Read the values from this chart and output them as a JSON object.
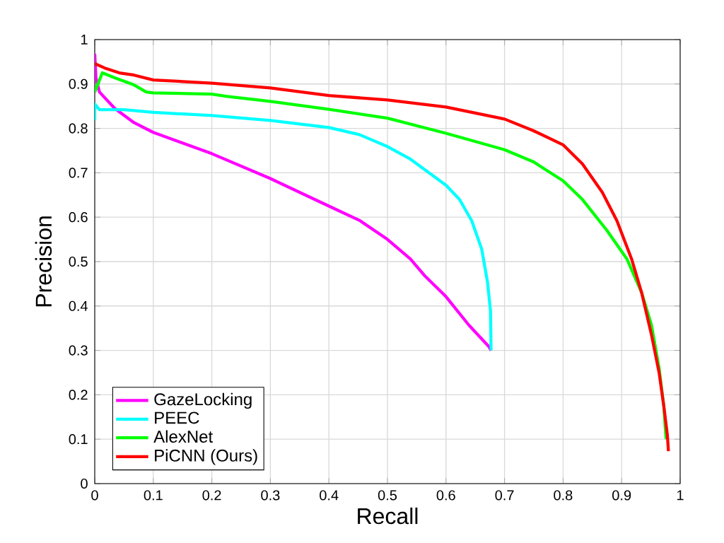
{
  "chart_data": {
    "type": "line",
    "xlabel": "Recall",
    "ylabel": "Precision",
    "xlim": [
      0,
      1
    ],
    "ylim": [
      0,
      1
    ],
    "xticks": [
      0,
      0.1,
      0.2,
      0.3,
      0.4,
      0.5,
      0.6,
      0.7,
      0.8,
      0.9,
      1
    ],
    "yticks": [
      0,
      0.1,
      0.2,
      0.3,
      0.4,
      0.5,
      0.6,
      0.7,
      0.8,
      0.9,
      1
    ],
    "grid": true,
    "legend": "bottom left",
    "line_style": "solid",
    "series": [
      {
        "name": "GazeLocking",
        "color": "#ff00ff",
        "x": [
          0,
          0.002,
          0.008,
          0.034,
          0.067,
          0.1,
          0.2,
          0.3,
          0.4,
          0.452,
          0.5,
          0.539,
          0.563,
          0.6,
          0.639,
          0.673,
          0.677
        ],
        "values": [
          0.968,
          0.914,
          0.882,
          0.845,
          0.813,
          0.791,
          0.743,
          0.687,
          0.625,
          0.593,
          0.55,
          0.506,
          0.469,
          0.421,
          0.357,
          0.309,
          0.3
        ]
      },
      {
        "name": "PEEC",
        "color": "#00ffff",
        "x": [
          0,
          0,
          0.008,
          0.05,
          0.1,
          0.2,
          0.3,
          0.4,
          0.452,
          0.5,
          0.539,
          0.572,
          0.6,
          0.623,
          0.644,
          0.661,
          0.671,
          0.676,
          0.677
        ],
        "values": [
          0.818,
          0.855,
          0.842,
          0.842,
          0.836,
          0.829,
          0.818,
          0.802,
          0.786,
          0.759,
          0.731,
          0.699,
          0.672,
          0.64,
          0.592,
          0.528,
          0.453,
          0.389,
          0.3
        ]
      },
      {
        "name": "AlexNet",
        "color": "#00ff00",
        "x": [
          0,
          0.013,
          0.034,
          0.067,
          0.088,
          0.1,
          0.2,
          0.226,
          0.3,
          0.4,
          0.5,
          0.6,
          0.7,
          0.749,
          0.8,
          0.833,
          0.875,
          0.909,
          0.934,
          0.951,
          0.964,
          0.972,
          0.976
        ],
        "values": [
          0.882,
          0.925,
          0.914,
          0.898,
          0.882,
          0.88,
          0.877,
          0.872,
          0.861,
          0.843,
          0.823,
          0.789,
          0.752,
          0.725,
          0.682,
          0.64,
          0.57,
          0.506,
          0.431,
          0.357,
          0.26,
          0.175,
          0.1
        ]
      },
      {
        "name": "PiCNN (Ours)",
        "color": "#ff0000",
        "x": [
          0,
          0.017,
          0.042,
          0.067,
          0.1,
          0.2,
          0.3,
          0.4,
          0.5,
          0.6,
          0.7,
          0.749,
          0.8,
          0.833,
          0.867,
          0.892,
          0.917,
          0.934,
          0.951,
          0.964,
          0.972,
          0.978,
          0.98
        ],
        "values": [
          0.946,
          0.936,
          0.925,
          0.92,
          0.909,
          0.902,
          0.891,
          0.874,
          0.864,
          0.848,
          0.821,
          0.795,
          0.763,
          0.72,
          0.656,
          0.592,
          0.506,
          0.431,
          0.335,
          0.25,
          0.175,
          0.111,
          0.073
        ]
      }
    ]
  }
}
